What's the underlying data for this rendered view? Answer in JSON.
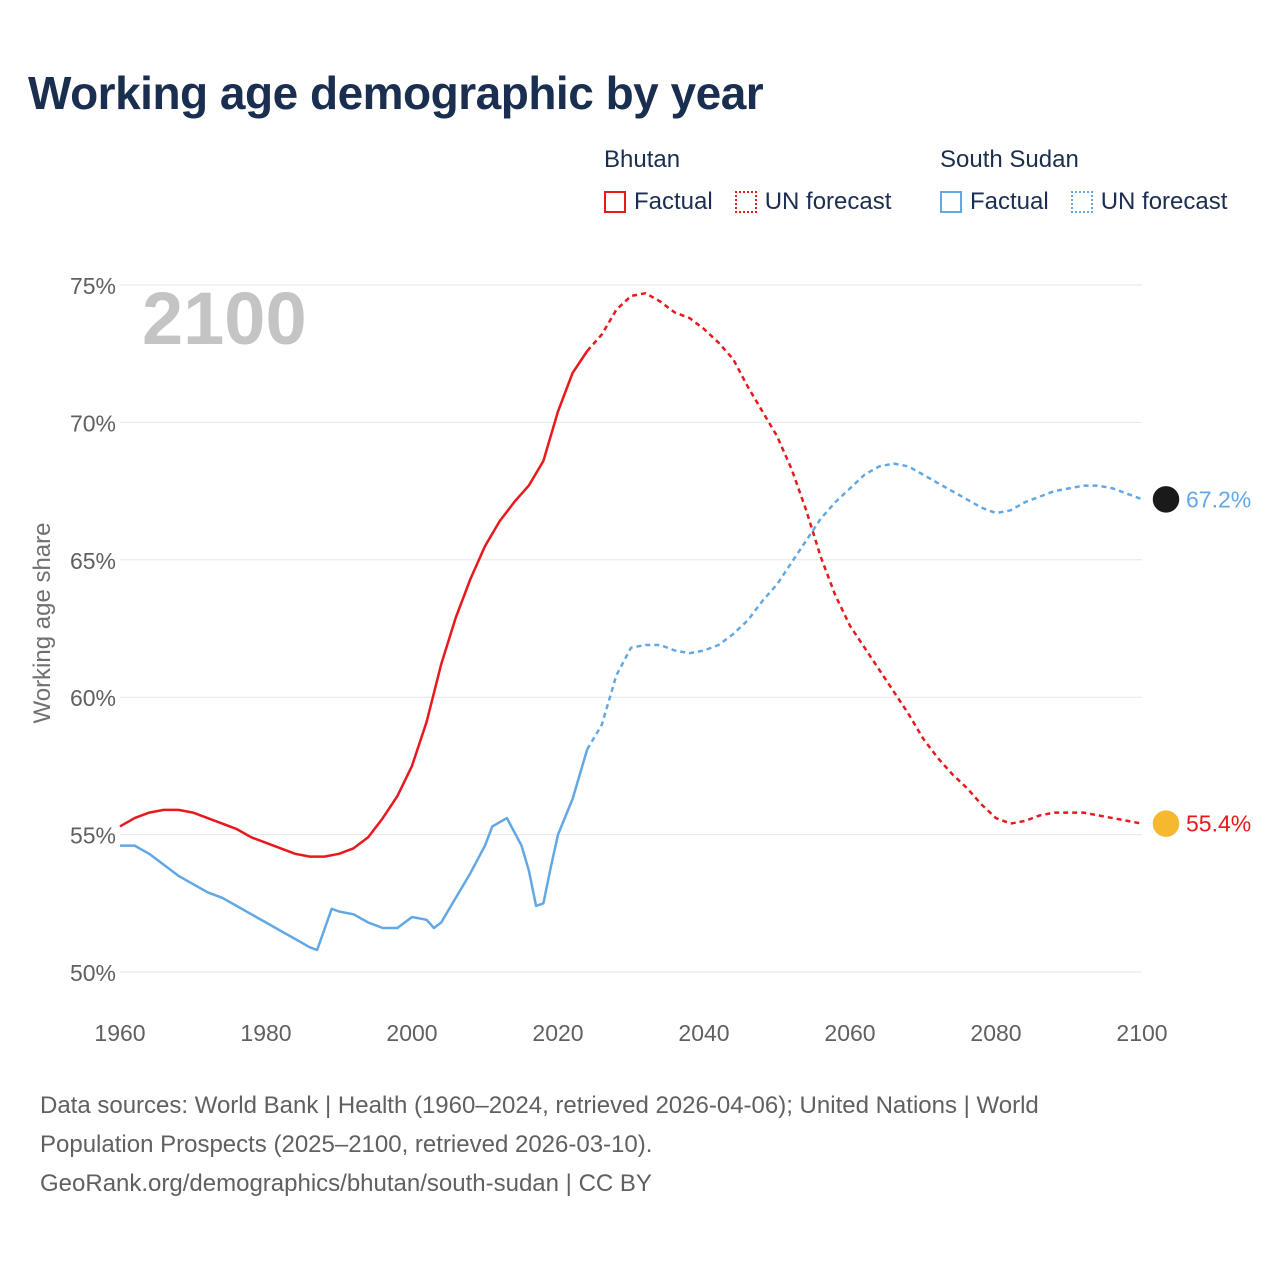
{
  "title": "Working age demographic by year",
  "legend": {
    "groups": [
      {
        "name": "Bhutan",
        "color": "#e8191c",
        "factual_label": "Factual",
        "forecast_label": "UN forecast"
      },
      {
        "name": "South Sudan",
        "color": "#62a8e5",
        "factual_label": "Factual",
        "forecast_label": "UN forecast"
      }
    ]
  },
  "footer": {
    "line1": "Data sources: World Bank | Health (1960–2024, retrieved 2026-04-06); United Nations | World",
    "line2": "Population Prospects (2025–2100, retrieved 2026-03-10).",
    "line3": "GeoRank.org/demographics/bhutan/south-sudan | CC BY"
  },
  "chart_data": {
    "type": "line",
    "title": "Working age demographic by year",
    "year_watermark": "2100",
    "ylabel": "Working age share",
    "xlabel": "",
    "xlim": [
      1960,
      2100
    ],
    "ylim": [
      50,
      75
    ],
    "x_ticks": [
      "1960",
      "1980",
      "2000",
      "2020",
      "2040",
      "2060",
      "2080",
      "2100"
    ],
    "x_tick_values": [
      1960,
      1980,
      2000,
      2020,
      2040,
      2060,
      2080,
      2100
    ],
    "y_ticks": [
      "50%",
      "55%",
      "60%",
      "65%",
      "70%",
      "75%"
    ],
    "y_tick_values": [
      50,
      55,
      60,
      65,
      70,
      75
    ],
    "grid": true,
    "factual_end_year": 2024,
    "series": [
      {
        "name": "Bhutan",
        "color": "#e8191c",
        "end_label": "55.4%",
        "flag_color": "#f5b82e",
        "points": [
          [
            1960,
            55.3
          ],
          [
            1962,
            55.6
          ],
          [
            1964,
            55.8
          ],
          [
            1966,
            55.9
          ],
          [
            1968,
            55.9
          ],
          [
            1970,
            55.8
          ],
          [
            1972,
            55.6
          ],
          [
            1974,
            55.4
          ],
          [
            1976,
            55.2
          ],
          [
            1978,
            54.9
          ],
          [
            1980,
            54.7
          ],
          [
            1982,
            54.5
          ],
          [
            1984,
            54.3
          ],
          [
            1986,
            54.2
          ],
          [
            1988,
            54.2
          ],
          [
            1990,
            54.3
          ],
          [
            1992,
            54.5
          ],
          [
            1994,
            54.9
          ],
          [
            1996,
            55.6
          ],
          [
            1998,
            56.4
          ],
          [
            2000,
            57.5
          ],
          [
            2002,
            59.1
          ],
          [
            2004,
            61.2
          ],
          [
            2006,
            62.9
          ],
          [
            2008,
            64.3
          ],
          [
            2010,
            65.5
          ],
          [
            2012,
            66.4
          ],
          [
            2014,
            67.1
          ],
          [
            2016,
            67.7
          ],
          [
            2018,
            68.6
          ],
          [
            2020,
            70.4
          ],
          [
            2022,
            71.8
          ],
          [
            2024,
            72.6
          ],
          [
            2026,
            73.2
          ],
          [
            2028,
            74.1
          ],
          [
            2030,
            74.6
          ],
          [
            2032,
            74.7
          ],
          [
            2034,
            74.4
          ],
          [
            2036,
            74.0
          ],
          [
            2038,
            73.8
          ],
          [
            2040,
            73.4
          ],
          [
            2042,
            72.9
          ],
          [
            2044,
            72.3
          ],
          [
            2046,
            71.3
          ],
          [
            2048,
            70.4
          ],
          [
            2050,
            69.5
          ],
          [
            2052,
            68.3
          ],
          [
            2054,
            66.8
          ],
          [
            2056,
            65.1
          ],
          [
            2058,
            63.7
          ],
          [
            2060,
            62.6
          ],
          [
            2062,
            61.8
          ],
          [
            2064,
            61.0
          ],
          [
            2066,
            60.2
          ],
          [
            2068,
            59.4
          ],
          [
            2070,
            58.5
          ],
          [
            2072,
            57.8
          ],
          [
            2074,
            57.2
          ],
          [
            2076,
            56.7
          ],
          [
            2078,
            56.1
          ],
          [
            2080,
            55.6
          ],
          [
            2082,
            55.4
          ],
          [
            2084,
            55.5
          ],
          [
            2086,
            55.7
          ],
          [
            2088,
            55.8
          ],
          [
            2090,
            55.8
          ],
          [
            2092,
            55.8
          ],
          [
            2094,
            55.7
          ],
          [
            2096,
            55.6
          ],
          [
            2098,
            55.5
          ],
          [
            2100,
            55.4
          ]
        ]
      },
      {
        "name": "South Sudan",
        "color": "#62a8e5",
        "end_label": "67.2%",
        "flag_color": "#1a1a1a",
        "points": [
          [
            1960,
            54.6
          ],
          [
            1962,
            54.6
          ],
          [
            1964,
            54.3
          ],
          [
            1966,
            53.9
          ],
          [
            1968,
            53.5
          ],
          [
            1970,
            53.2
          ],
          [
            1972,
            52.9
          ],
          [
            1974,
            52.7
          ],
          [
            1976,
            52.4
          ],
          [
            1978,
            52.1
          ],
          [
            1980,
            51.8
          ],
          [
            1982,
            51.5
          ],
          [
            1984,
            51.2
          ],
          [
            1986,
            50.9
          ],
          [
            1987,
            50.8
          ],
          [
            1989,
            52.3
          ],
          [
            1990,
            52.2
          ],
          [
            1992,
            52.1
          ],
          [
            1994,
            51.8
          ],
          [
            1996,
            51.6
          ],
          [
            1998,
            51.6
          ],
          [
            2000,
            52.0
          ],
          [
            2002,
            51.9
          ],
          [
            2003,
            51.6
          ],
          [
            2004,
            51.8
          ],
          [
            2006,
            52.7
          ],
          [
            2008,
            53.6
          ],
          [
            2010,
            54.6
          ],
          [
            2011,
            55.3
          ],
          [
            2013,
            55.6
          ],
          [
            2015,
            54.6
          ],
          [
            2016,
            53.7
          ],
          [
            2017,
            52.4
          ],
          [
            2018,
            52.5
          ],
          [
            2019,
            53.8
          ],
          [
            2020,
            55.0
          ],
          [
            2022,
            56.3
          ],
          [
            2024,
            58.1
          ],
          [
            2026,
            59.0
          ],
          [
            2028,
            60.8
          ],
          [
            2030,
            61.8
          ],
          [
            2032,
            61.9
          ],
          [
            2034,
            61.9
          ],
          [
            2036,
            61.7
          ],
          [
            2038,
            61.6
          ],
          [
            2040,
            61.7
          ],
          [
            2042,
            61.9
          ],
          [
            2044,
            62.3
          ],
          [
            2046,
            62.8
          ],
          [
            2048,
            63.5
          ],
          [
            2050,
            64.1
          ],
          [
            2052,
            64.9
          ],
          [
            2054,
            65.7
          ],
          [
            2056,
            66.5
          ],
          [
            2058,
            67.1
          ],
          [
            2060,
            67.6
          ],
          [
            2062,
            68.1
          ],
          [
            2064,
            68.4
          ],
          [
            2066,
            68.5
          ],
          [
            2068,
            68.4
          ],
          [
            2070,
            68.1
          ],
          [
            2072,
            67.8
          ],
          [
            2074,
            67.5
          ],
          [
            2076,
            67.2
          ],
          [
            2078,
            66.9
          ],
          [
            2080,
            66.7
          ],
          [
            2082,
            66.8
          ],
          [
            2084,
            67.1
          ],
          [
            2086,
            67.3
          ],
          [
            2088,
            67.5
          ],
          [
            2090,
            67.6
          ],
          [
            2092,
            67.7
          ],
          [
            2094,
            67.7
          ],
          [
            2096,
            67.6
          ],
          [
            2098,
            67.4
          ],
          [
            2100,
            67.2
          ]
        ]
      }
    ]
  }
}
